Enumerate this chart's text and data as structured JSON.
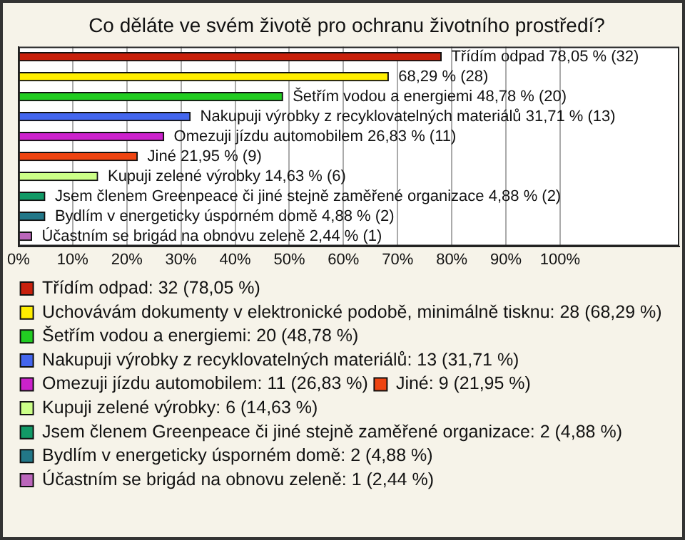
{
  "chart_data": {
    "type": "bar",
    "orientation": "horizontal",
    "title": "Co děláte ve svém životě pro ochranu životního prostředí?",
    "categories": [
      null,
      null,
      null,
      null,
      null,
      null,
      null,
      null,
      null,
      null
    ],
    "series": [
      {
        "name": "Třídím odpad: 32 (78,05 %)",
        "color": "#c8200c",
        "values": [
          78.05,
          null,
          null,
          null,
          null,
          null,
          null,
          null,
          null,
          null
        ],
        "value_labels": [
          "Třídím odpad 78,05 % (32)",
          null,
          null,
          null,
          null,
          null,
          null,
          null,
          null,
          null
        ]
      },
      {
        "name": "Uchovávám dokumenty v elektronické podobě, minimálně tisknu: 28 (68,29 %)",
        "color": "#ffee00",
        "values": [
          null,
          68.29,
          null,
          null,
          null,
          null,
          null,
          null,
          null,
          null
        ],
        "value_labels": [
          null,
          "68,29 % (28)",
          null,
          null,
          null,
          null,
          null,
          null,
          null,
          null
        ]
      },
      {
        "name": "Šetřím vodou a energiemi: 20 (48,78 %)",
        "color": "#22cc22",
        "values": [
          null,
          null,
          48.78,
          null,
          null,
          null,
          null,
          null,
          null,
          null
        ],
        "value_labels": [
          null,
          null,
          "Šetřím vodou a energiemi 48,78 % (20)",
          null,
          null,
          null,
          null,
          null,
          null,
          null
        ]
      },
      {
        "name": "Nakupuji výrobky z recyklovatelných materiálů: 13 (31,71 %)",
        "color": "#4466ee",
        "values": [
          null,
          null,
          null,
          31.71,
          null,
          null,
          null,
          null,
          null,
          null
        ],
        "value_labels": [
          null,
          null,
          null,
          "Nakupuji výrobky z recyklovatelných materiálů 31,71 % (13)",
          null,
          null,
          null,
          null,
          null,
          null
        ]
      },
      {
        "name": "Omezuji jízdu automobilem: 11 (26,83 %)",
        "color": "#cc22cc",
        "values": [
          null,
          null,
          null,
          null,
          26.83,
          null,
          null,
          null,
          null,
          null
        ],
        "value_labels": [
          null,
          null,
          null,
          null,
          "Omezuji jízdu automobilem 26,83 % (11)",
          null,
          null,
          null,
          null,
          null
        ]
      },
      {
        "name": "Jiné: 9 (21,95 %)",
        "color": "#ee4411",
        "values": [
          null,
          null,
          null,
          null,
          null,
          21.95,
          null,
          null,
          null,
          null
        ],
        "value_labels": [
          null,
          null,
          null,
          null,
          null,
          "Jiné 21,95 % (9)",
          null,
          null,
          null,
          null
        ]
      },
      {
        "name": "Kupuji zelené výrobky: 6 (14,63 %)",
        "color": "#ccff88",
        "values": [
          null,
          null,
          null,
          null,
          null,
          null,
          14.63,
          null,
          null,
          null
        ],
        "value_labels": [
          null,
          null,
          null,
          null,
          null,
          null,
          "Kupuji zelené výrobky 14,63 % (6)",
          null,
          null,
          null
        ]
      },
      {
        "name": "Jsem členem Greenpeace či jiné stejně zaměřené organizace: 2 (4,88 %)",
        "color": "#119966",
        "values": [
          null,
          null,
          null,
          null,
          null,
          null,
          null,
          4.88,
          null,
          null
        ],
        "value_labels": [
          null,
          null,
          null,
          null,
          null,
          null,
          null,
          "Jsem členem Greenpeace či jiné stejně zaměřené organizace 4,88 % (2)",
          null,
          null
        ]
      },
      {
        "name": "Bydlím v energeticky úsporném domě: 2 (4,88 %)",
        "color": "#227788",
        "values": [
          null,
          null,
          null,
          null,
          null,
          null,
          null,
          null,
          4.88,
          null
        ],
        "value_labels": [
          null,
          null,
          null,
          null,
          null,
          null,
          null,
          null,
          "Bydlím v energeticky úsporném domě 4,88 % (2)",
          null
        ]
      },
      {
        "name": "Účastním se brigád na obnovu zeleně: 1 (2,44 %)",
        "color": "#bb66bb",
        "values": [
          null,
          null,
          null,
          null,
          null,
          null,
          null,
          null,
          null,
          2.44
        ],
        "value_labels": [
          null,
          null,
          null,
          null,
          null,
          null,
          null,
          null,
          null,
          "Účastním se brigád na obnovu zeleně 2,44 % (1)"
        ]
      }
    ],
    "xlim": [
      0,
      122
    ],
    "xticks": [
      {
        "value": 0,
        "label": "0%"
      },
      {
        "value": 10,
        "label": "10%"
      },
      {
        "value": 20,
        "label": "20%"
      },
      {
        "value": 30,
        "label": "30%"
      },
      {
        "value": 40,
        "label": "40%"
      },
      {
        "value": 50,
        "label": "50%"
      },
      {
        "value": 60,
        "label": "60%"
      },
      {
        "value": 70,
        "label": "70%"
      },
      {
        "value": 80,
        "label": "80%"
      },
      {
        "value": 90,
        "label": "90%"
      },
      {
        "value": 100,
        "label": "100%"
      }
    ],
    "grid": "x",
    "legend": "bottom",
    "tick_labels": "x"
  }
}
